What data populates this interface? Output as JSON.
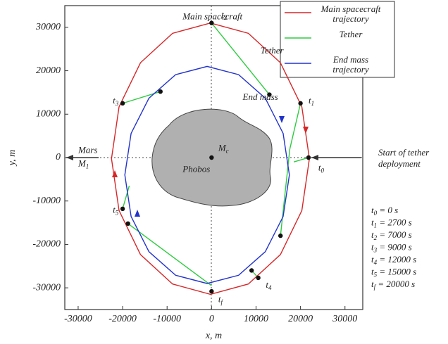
{
  "chart_data": {
    "type": "line",
    "xlabel": "x, m",
    "ylabel": "y, m",
    "xlim": [
      -33000,
      34000
    ],
    "ylim": [
      -35000,
      35000
    ],
    "xticks": [
      -30000,
      -20000,
      -10000,
      0,
      10000,
      20000,
      30000
    ],
    "yticks": [
      -30000,
      -20000,
      -10000,
      0,
      10000,
      20000,
      30000
    ],
    "series": [
      {
        "name": "Main spacecraft trajectory",
        "color": "#d62728",
        "x": [
          22000,
          20300,
          15480,
          8270,
          -250,
          -8770,
          -15980,
          -20800,
          -22500,
          -20800,
          -15980,
          -8770,
          -250,
          8270,
          15480,
          20300,
          22000
        ],
        "y": [
          -250,
          11700,
          21850,
          28620,
          31000,
          28620,
          21850,
          11700,
          -250,
          -12200,
          -22350,
          -29120,
          -31500,
          -29120,
          -22350,
          -12200,
          -250
        ]
      },
      {
        "name": "Tether",
        "color": "#2ecc40",
        "x": [
          0,
          13000,
          null,
          -20000,
          -11500,
          null,
          20000,
          17600,
          null,
          17600,
          15500,
          null,
          21800,
          18500,
          null,
          -20000,
          -18500,
          null,
          -18800,
          0,
          null,
          9000,
          10500
        ],
        "y": [
          31000,
          14500,
          null,
          12500,
          15200,
          null,
          12500,
          2000,
          null,
          2000,
          -18000,
          null,
          0,
          -1000,
          null,
          -11800,
          -6500,
          null,
          -15200,
          -29500,
          null,
          -26000,
          -27700
        ]
      },
      {
        "name": "End mass trajectory",
        "color": "#2233cc",
        "x": [
          17500,
          16090,
          12080,
          6080,
          -1000,
          -8080,
          -14080,
          -18090,
          -19500,
          -18090,
          -14080,
          -8080,
          -1000,
          6080,
          12080,
          16090,
          17500
        ],
        "y": [
          -4000,
          5580,
          13680,
          19100,
          21000,
          19100,
          13680,
          5580,
          -4000,
          -13580,
          -21680,
          -27100,
          -29000,
          -27100,
          -21680,
          -13580,
          -4000
        ]
      }
    ],
    "points": {
      "x": [
        0,
        13000,
        -20000,
        -11500,
        20000,
        21800,
        0,
        -20000,
        -18800,
        15500,
        9000,
        10500,
        0
      ],
      "y": [
        31000,
        14500,
        12500,
        15200,
        12500,
        0,
        0,
        -11800,
        -15200,
        -18000,
        -26000,
        -27700,
        -30800
      ]
    },
    "annotations": [
      {
        "text": "Main spacecraft",
        "x": -6500,
        "y": 32300
      },
      {
        "text": "Tether",
        "x": 11000,
        "y": 24500
      },
      {
        "text": "End mass",
        "x": 7000,
        "y": 13800
      },
      {
        "text": "Phobos",
        "x": -6500,
        "y": -2800
      },
      {
        "text": "Mars",
        "x": -30000,
        "y": 1500
      }
    ],
    "point_labels": [
      {
        "base": "t",
        "sub": "2",
        "x": 2200,
        "y": 32700
      },
      {
        "base": "t",
        "sub": "1",
        "x": 21800,
        "y": 13000
      },
      {
        "base": "t",
        "sub": "0",
        "x": 24000,
        "y": -2500
      },
      {
        "base": "t",
        "sub": "3",
        "x": -22200,
        "y": 13000
      },
      {
        "base": "t",
        "sub": "5",
        "x": -22200,
        "y": -12200
      },
      {
        "base": "t",
        "sub": "4",
        "x": 12200,
        "y": -29500
      },
      {
        "base": "t",
        "sub": "f",
        "x": 1500,
        "y": -32800
      },
      {
        "base": "M",
        "sub": "1",
        "x": -30000,
        "y": -1500
      },
      {
        "base": "M",
        "sub": "c",
        "x": 1500,
        "y": 2000
      }
    ],
    "side_note": [
      "Start of tether",
      "deployment"
    ],
    "times": [
      {
        "base": "t",
        "sub": "0",
        "text": " = 0 s"
      },
      {
        "base": "t",
        "sub": "1",
        "text": " = 2700 s"
      },
      {
        "base": "t",
        "sub": "2",
        "text": " = 7000 s"
      },
      {
        "base": "t",
        "sub": "3",
        "text": " = 9000 s"
      },
      {
        "base": "t",
        "sub": "4",
        "text": " = 12000 s"
      },
      {
        "base": "t",
        "sub": "5",
        "text": " = 15000 s"
      },
      {
        "base": "t",
        "sub": "f",
        "text": " = 20000 s"
      }
    ]
  }
}
